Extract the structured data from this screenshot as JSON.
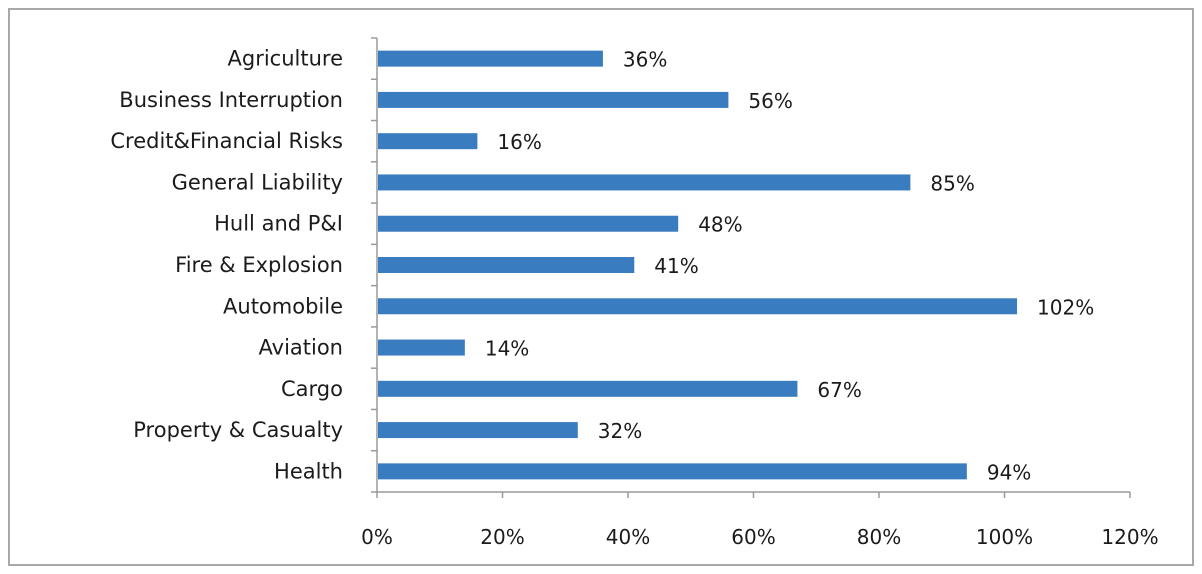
{
  "chart_data": {
    "type": "bar",
    "orientation": "horizontal",
    "title": "",
    "xlabel": "",
    "ylabel": "",
    "categories": [
      "Agriculture",
      "Business Interruption",
      "Credit&Financial Risks",
      "General Liability",
      "Hull and P&I",
      "Fire & Explosion",
      "Automobile",
      "Aviation",
      "Cargo",
      "Property & Casualty",
      "Health"
    ],
    "values": [
      36,
      56,
      16,
      85,
      48,
      41,
      102,
      14,
      67,
      32,
      94
    ],
    "data_labels": [
      "36%",
      "56%",
      "16%",
      "85%",
      "48%",
      "41%",
      "102%",
      "14%",
      "67%",
      "32%",
      "94%"
    ],
    "xlim": [
      0,
      120
    ],
    "x_ticks": [
      0,
      20,
      40,
      60,
      80,
      100,
      120
    ],
    "x_tick_labels": [
      "0%",
      "20%",
      "40%",
      "60%",
      "80%",
      "100%",
      "120%"
    ],
    "grid": false,
    "legend": false,
    "bar_color": "#3a7cc0"
  }
}
